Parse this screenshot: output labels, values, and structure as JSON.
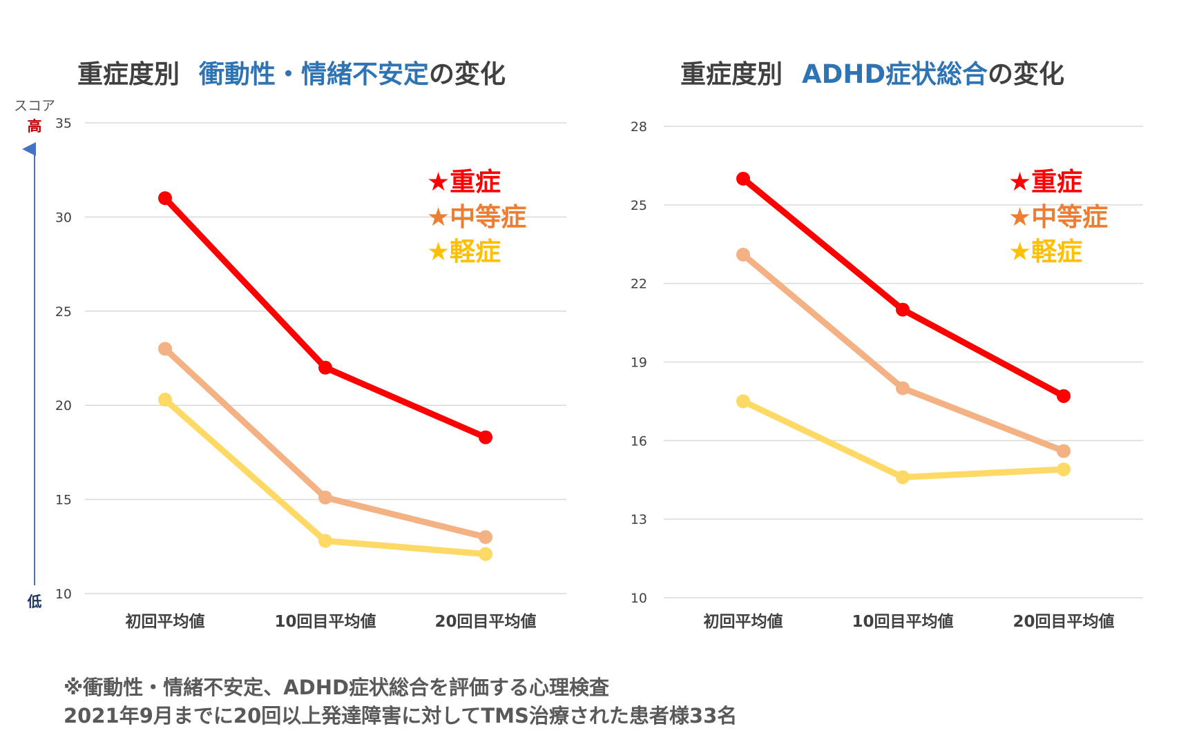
{
  "chart_data": [
    {
      "type": "line",
      "title_prefix": "重症度別",
      "title_highlight": "衝動性・情緒不安定",
      "title_suffix": "の変化",
      "xlabel": "",
      "ylabel": "",
      "ylim": [
        10,
        35
      ],
      "yticks": [
        "10",
        "15",
        "20",
        "25",
        "30",
        "35"
      ],
      "categories": [
        "初回平均値",
        "10回目平均値",
        "20回目平均値"
      ],
      "grid": true,
      "legend_position": "top-right",
      "series": [
        {
          "name": "★重症",
          "values": [
            31,
            22,
            18.3
          ],
          "color": "#ff0000"
        },
        {
          "name": "★中等症",
          "values": [
            23,
            15.1,
            13
          ],
          "color": "#f4b183"
        },
        {
          "name": "★軽症",
          "values": [
            20.3,
            12.8,
            12.1
          ],
          "color": "#ffd966"
        }
      ],
      "axis_annotation": {
        "label": "スコア",
        "high": "高",
        "low": "低"
      }
    },
    {
      "type": "line",
      "title_prefix": "重症度別",
      "title_highlight": "ADHD症状総合",
      "title_suffix": "の変化",
      "xlabel": "",
      "ylabel": "",
      "ylim": [
        10,
        28
      ],
      "yticks": [
        "10",
        "13",
        "16",
        "19",
        "22",
        "25",
        "28"
      ],
      "categories": [
        "初回平均値",
        "10回目平均値",
        "20回目平均値"
      ],
      "grid": true,
      "legend_position": "top-right",
      "series": [
        {
          "name": "★重症",
          "values": [
            26,
            21,
            17.7
          ],
          "color": "#ff0000"
        },
        {
          "name": "★中等症",
          "values": [
            23.1,
            18,
            15.6
          ],
          "color": "#f4b183"
        },
        {
          "name": "★軽症",
          "values": [
            17.5,
            14.6,
            14.9
          ],
          "color": "#ffd966"
        }
      ]
    }
  ],
  "legend_text_colors": [
    "#ff0000",
    "#ed7d31",
    "#ffc000"
  ],
  "footnote": {
    "line1": "※衝動性・情緒不安定、ADHD症状総合を評価する心理検査",
    "line2": "2021年9月までに20回以上発達障害に対してTMS治療された患者様33名"
  }
}
